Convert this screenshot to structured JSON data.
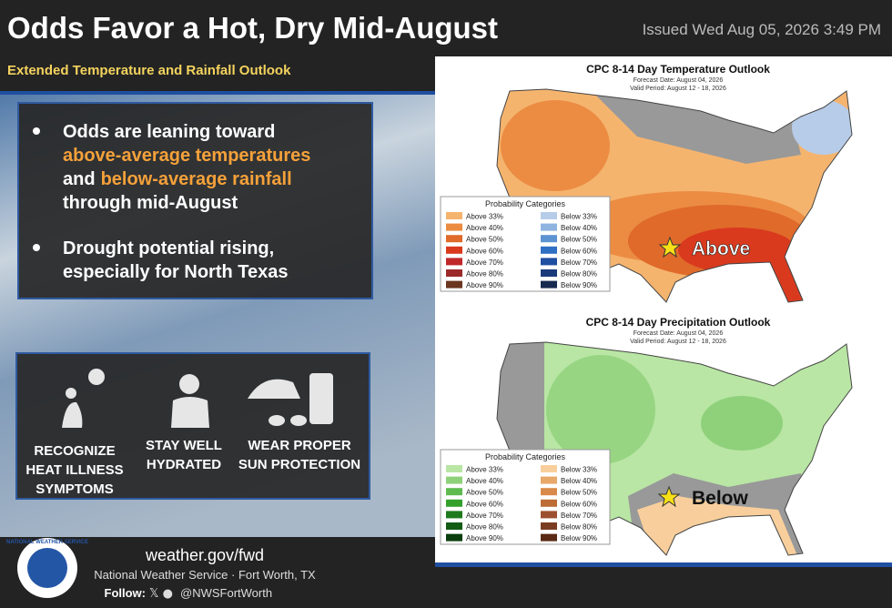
{
  "header": {
    "title": "Odds Favor a Hot, Dry Mid-August",
    "issued": "Issued Wed Aug 05, 2026 3:49 PM",
    "subtitle": "Extended Temperature and Rainfall Outlook"
  },
  "bullets": [
    {
      "parts": [
        "Odds are leaning toward",
        "above-average temperatures",
        "and",
        "below-average rainfall",
        "through mid-August"
      ]
    },
    {
      "lines": [
        "Drought potential rising,",
        "especially for North Texas"
      ]
    }
  ],
  "tips": [
    {
      "lines": [
        "RECOGNIZE",
        "HEAT ILLNESS",
        "SYMPTOMS"
      ]
    },
    {
      "lines": [
        "STAY WELL",
        "HYDRATED"
      ]
    },
    {
      "lines": [
        "WEAR PROPER",
        "SUN PROTECTION"
      ]
    }
  ],
  "maps": [
    {
      "title": "CPC 8-14 Day Temperature Outlook",
      "forecast_date": "Forecast Date: August 04, 2026",
      "valid_period": "Valid Period: August 12 - 18, 2026",
      "legend_title": "Probability Categories",
      "callout": "Above",
      "left": [
        {
          "label": "Above 33%",
          "color": "#f5b46e"
        },
        {
          "label": "Above 40%",
          "color": "#eb8c42"
        },
        {
          "label": "Above 50%",
          "color": "#e06a2a"
        },
        {
          "label": "Above 60%",
          "color": "#d93a1e"
        },
        {
          "label": "Above 70%",
          "color": "#c0282a"
        },
        {
          "label": "Above 80%",
          "color": "#9c2a2a"
        },
        {
          "label": "Above 90%",
          "color": "#6b3520"
        }
      ],
      "right": [
        {
          "label": "Below 33%",
          "color": "#b7cce8"
        },
        {
          "label": "Below 40%",
          "color": "#8fb4e0"
        },
        {
          "label": "Below 50%",
          "color": "#5e93d2"
        },
        {
          "label": "Below 60%",
          "color": "#2f6fc4"
        },
        {
          "label": "Below 70%",
          "color": "#1f4fa0"
        },
        {
          "label": "Below 80%",
          "color": "#1a3a7a"
        },
        {
          "label": "Below 90%",
          "color": "#172a50"
        }
      ]
    },
    {
      "title": "CPC 8-14 Day Precipitation Outlook",
      "forecast_date": "Forecast Date: August 04, 2026",
      "valid_period": "Valid Period: August 12 - 18, 2026",
      "legend_title": "Probability Categories",
      "callout": "Below",
      "left": [
        {
          "label": "Above 33%",
          "color": "#b9e6a4"
        },
        {
          "label": "Above 40%",
          "color": "#8fd17a"
        },
        {
          "label": "Above 50%",
          "color": "#5fbb50"
        },
        {
          "label": "Above 60%",
          "color": "#33a02c"
        },
        {
          "label": "Above 70%",
          "color": "#1f7a1e"
        },
        {
          "label": "Above 80%",
          "color": "#135c14"
        },
        {
          "label": "Above 90%",
          "color": "#0a3f0d"
        }
      ],
      "right": [
        {
          "label": "Below 33%",
          "color": "#f8cf9c"
        },
        {
          "label": "Below 40%",
          "color": "#e8a86a"
        },
        {
          "label": "Below 50%",
          "color": "#d98a4a"
        },
        {
          "label": "Below 60%",
          "color": "#bd6c35"
        },
        {
          "label": "Below 70%",
          "color": "#9c5030"
        },
        {
          "label": "Below 80%",
          "color": "#7a3c20"
        },
        {
          "label": "Below 90%",
          "color": "#5a2a14"
        }
      ]
    }
  ],
  "footer": {
    "url": "weather.gov/fwd",
    "office": "National Weather Service · Fort Worth, TX",
    "follow": "Follow:",
    "handle": "@NWSFortWorth",
    "logo_text": "NATIONAL WEATHER SERVICE"
  }
}
